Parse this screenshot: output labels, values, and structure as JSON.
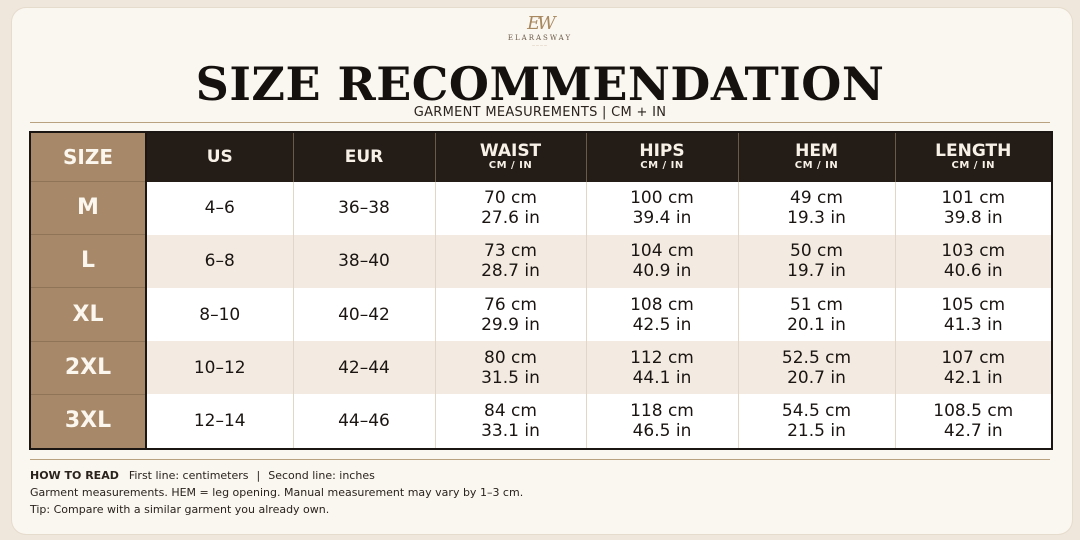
{
  "brand": {
    "logo_mark": "EW",
    "name": "ELARASWAY",
    "tagline": "————"
  },
  "title": "SIZE RECOMMENDATION",
  "subtitle": "GARMENT MEASUREMENTS  |  CM + IN",
  "table": {
    "headers": [
      {
        "main": "SIZE",
        "sub": ""
      },
      {
        "main": "US",
        "sub": ""
      },
      {
        "main": "EUR",
        "sub": ""
      },
      {
        "main": "WAIST",
        "sub": "CM / IN"
      },
      {
        "main": "HIPS",
        "sub": "CM / IN"
      },
      {
        "main": "HEM",
        "sub": "CM / IN"
      },
      {
        "main": "LENGTH",
        "sub": "CM / IN"
      }
    ],
    "rows": [
      {
        "size": "M",
        "us": "4–6",
        "eur": "36–38",
        "waist": {
          "cm": "70 cm",
          "in": "27.6 in"
        },
        "hips": {
          "cm": "100 cm",
          "in": "39.4 in"
        },
        "hem": {
          "cm": "49 cm",
          "in": "19.3 in"
        },
        "length": {
          "cm": "101 cm",
          "in": "39.8 in"
        }
      },
      {
        "size": "L",
        "us": "6–8",
        "eur": "38–40",
        "waist": {
          "cm": "73 cm",
          "in": "28.7 in"
        },
        "hips": {
          "cm": "104 cm",
          "in": "40.9 in"
        },
        "hem": {
          "cm": "50 cm",
          "in": "19.7 in"
        },
        "length": {
          "cm": "103 cm",
          "in": "40.6 in"
        }
      },
      {
        "size": "XL",
        "us": "8–10",
        "eur": "40–42",
        "waist": {
          "cm": "76 cm",
          "in": "29.9 in"
        },
        "hips": {
          "cm": "108 cm",
          "in": "42.5 in"
        },
        "hem": {
          "cm": "51 cm",
          "in": "20.1 in"
        },
        "length": {
          "cm": "105 cm",
          "in": "41.3 in"
        }
      },
      {
        "size": "2XL",
        "us": "10–12",
        "eur": "42–44",
        "waist": {
          "cm": "80 cm",
          "in": "31.5 in"
        },
        "hips": {
          "cm": "112 cm",
          "in": "44.1 in"
        },
        "hem": {
          "cm": "52.5 cm",
          "in": "20.7 in"
        },
        "length": {
          "cm": "107 cm",
          "in": "42.1 in"
        }
      },
      {
        "size": "3XL",
        "us": "12–14",
        "eur": "44–46",
        "waist": {
          "cm": "84 cm",
          "in": "33.1 in"
        },
        "hips": {
          "cm": "118 cm",
          "in": "46.5 in"
        },
        "hem": {
          "cm": "54.5 cm",
          "in": "21.5 in"
        },
        "length": {
          "cm": "108.5 cm",
          "in": "42.7 in"
        }
      }
    ]
  },
  "notes": {
    "how_to_read_label": "HOW TO READ",
    "first_line": "First line: centimeters",
    "separator": "|",
    "second_line": "Second line: inches",
    "line2": "Garment measurements. HEM = leg opening. Manual measurement may vary by 1–3 cm.",
    "line3": "Tip: Compare with a similar garment you already own."
  },
  "colors": {
    "header_dark": "#241c17",
    "size_column": "#a7896a",
    "row_alt": "#f3ebe1",
    "background": "#faf6f0"
  }
}
